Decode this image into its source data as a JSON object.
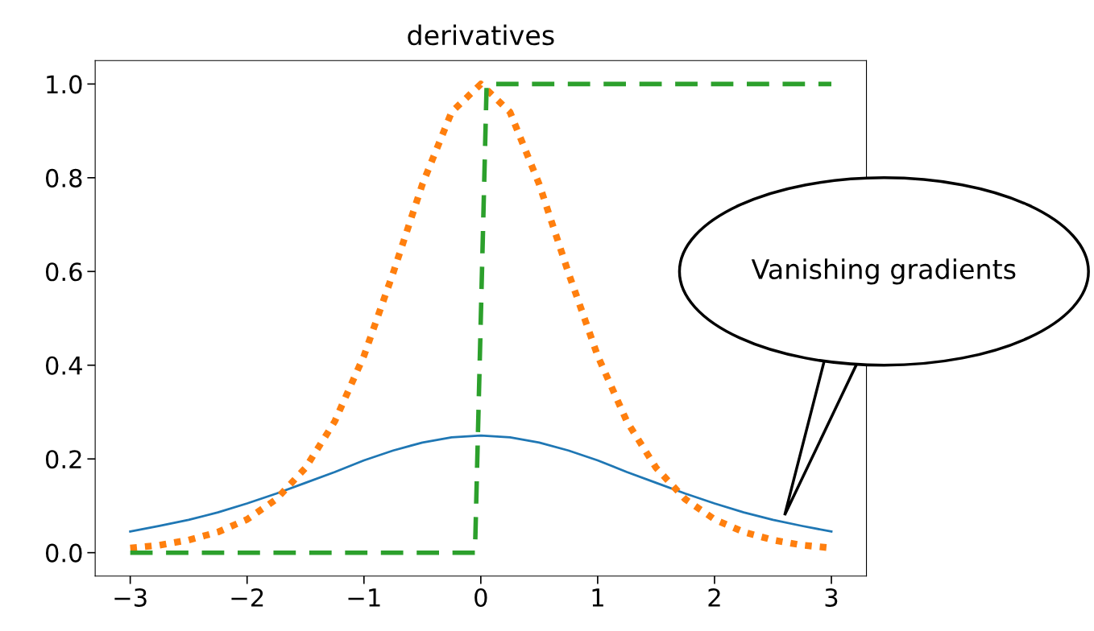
{
  "chart_data": {
    "type": "line",
    "title": "derivatives",
    "xlim": [
      -3.3,
      3.3
    ],
    "ylim": [
      -0.05,
      1.05
    ],
    "xticks": [
      {
        "value": -3,
        "label": "−3"
      },
      {
        "value": -2,
        "label": "−2"
      },
      {
        "value": -1,
        "label": "−1"
      },
      0,
      1,
      2,
      3
    ],
    "yticks": [
      {
        "value": 0,
        "label": "0.0"
      },
      0.2,
      0.4,
      0.6,
      0.8,
      {
        "value": 1.0,
        "label": "1.0"
      }
    ],
    "grid": false,
    "legend": false,
    "series": [
      {
        "color": "#1f77b4",
        "line_style": "solid",
        "x": [
          -3,
          -2.75,
          -2.5,
          -2.25,
          -2,
          -1.75,
          -1.5,
          -1.25,
          -1,
          -0.75,
          -0.5,
          -0.25,
          0,
          0.25,
          0.5,
          0.75,
          1,
          1.25,
          1.5,
          1.75,
          2,
          2.25,
          2.5,
          2.75,
          3
        ],
        "values": [
          0.045,
          0.057,
          0.07,
          0.086,
          0.105,
          0.126,
          0.149,
          0.172,
          0.197,
          0.218,
          0.235,
          0.246,
          0.25,
          0.246,
          0.235,
          0.218,
          0.197,
          0.172,
          0.149,
          0.126,
          0.105,
          0.086,
          0.07,
          0.057,
          0.045
        ]
      },
      {
        "color": "#ff7f0e",
        "line_style": "dotted",
        "x": [
          -3,
          -2.75,
          -2.5,
          -2.25,
          -2,
          -1.75,
          -1.5,
          -1.25,
          -1,
          -0.75,
          -0.5,
          -0.25,
          0,
          0.25,
          0.5,
          0.75,
          1,
          1.25,
          1.5,
          1.75,
          2,
          2.25,
          2.5,
          2.75,
          3
        ],
        "values": [
          0.01,
          0.016,
          0.027,
          0.044,
          0.071,
          0.114,
          0.181,
          0.28,
          0.42,
          0.597,
          0.786,
          0.94,
          1.0,
          0.94,
          0.786,
          0.597,
          0.42,
          0.28,
          0.181,
          0.114,
          0.071,
          0.044,
          0.027,
          0.016,
          0.01
        ]
      },
      {
        "color": "#2ca02c",
        "line_style": "dashed",
        "x": [
          -3,
          -0.05,
          0.05,
          3
        ],
        "values": [
          0,
          0,
          1,
          1
        ]
      }
    ],
    "annotations": [
      "Vanishing gradients"
    ]
  }
}
